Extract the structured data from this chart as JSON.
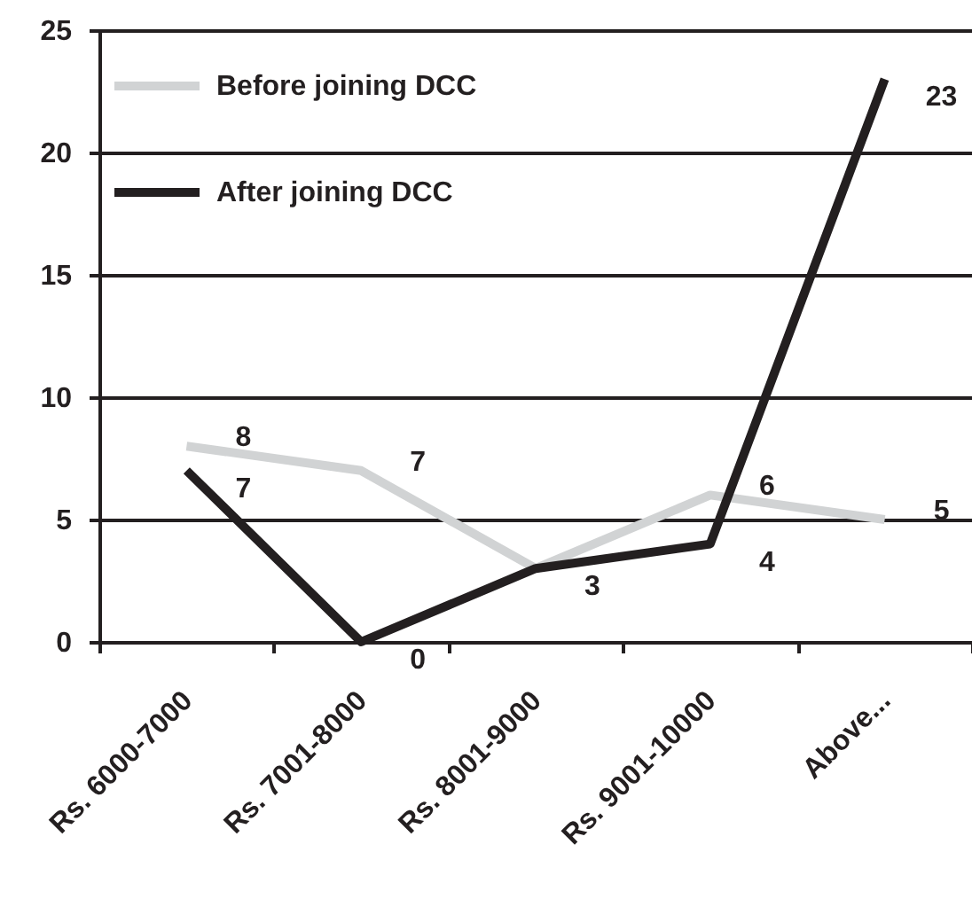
{
  "chart_data": {
    "type": "line",
    "categories": [
      "Rs. 6000-7000",
      "Rs. 7001-8000",
      "Rs. 8001-9000",
      "Rs. 9001-10000",
      "Above..."
    ],
    "series": [
      {
        "name": "Before joining DCC",
        "color": "#d1d3d4",
        "values": [
          8,
          7,
          3,
          6,
          5
        ],
        "value_labels": [
          "8",
          "7",
          null,
          "6",
          "5"
        ]
      },
      {
        "name": "After joining DCC",
        "color": "#231f20",
        "values": [
          7,
          0,
          3,
          4,
          23
        ],
        "value_labels": [
          "7",
          "0",
          "3",
          "4",
          "23"
        ]
      }
    ],
    "ylim": [
      0,
      25
    ],
    "yticks": [
      0,
      5,
      10,
      15,
      20,
      25
    ],
    "grid": "y",
    "legend": "top left"
  }
}
